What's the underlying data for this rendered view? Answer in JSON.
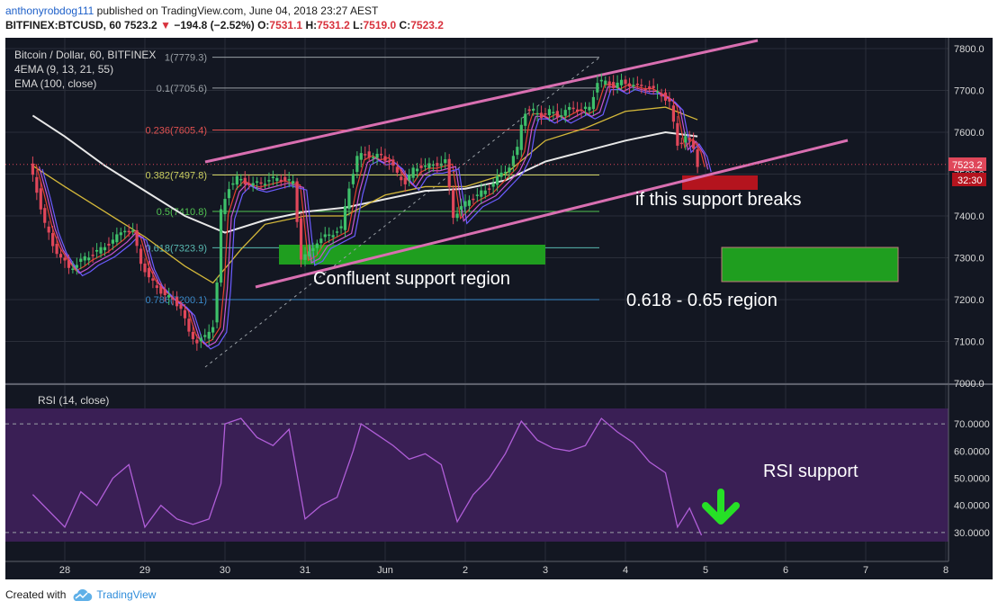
{
  "header": {
    "username": "anthonyrobdog111",
    "published_text": "published on TradingView.com, June 04, 2018 23:27 AEST",
    "symbol": "BITFINEX:BTCUSD, 60",
    "last": "7523.2",
    "change": "−194.8 (−2.52%)",
    "o_label": "O:",
    "o": "7531.1",
    "h_label": "H:",
    "h": "7531.2",
    "l_label": "L:",
    "l": "7519.0",
    "c_label": "C:",
    "c": "7523.2",
    "down_color": "#d8323d"
  },
  "legend": {
    "line1": "Bitcoin / Dollar, 60, BITFINEX",
    "line2": "4EMA (9, 13, 21, 55)",
    "line3": "EMA (100, close)"
  },
  "price_tag": {
    "value": "7523.2",
    "countdown": "32:30"
  },
  "rsi_legend": "RSI (14, close)",
  "annotations": {
    "confluent": "Confluent support region",
    "if_support": "if this support breaks",
    "golden": "0.618 - 0.65 region",
    "rsi_support": "RSI support"
  },
  "footer": {
    "created_with": "Created with",
    "brand": "TradingView"
  },
  "colors": {
    "background": "#131722",
    "pane": "#1e222d",
    "grid": "#2a2e39",
    "up": "#3ec06a",
    "down": "#e0475a",
    "channel": "#d96fb1",
    "ema100": "#e8e8e8",
    "rsi_fill": "#3a1f55",
    "rsi_line": "#b05ed8",
    "green_box": "#1f9e1f",
    "red_box": "#b4141e"
  },
  "chart_data": {
    "type": "candlestick",
    "title": "Bitcoin / Dollar, 60, BITFINEX",
    "x_ticks": [
      "28",
      "29",
      "30",
      "31",
      "Jun",
      "2",
      "3",
      "4",
      "5",
      "6",
      "7",
      "8"
    ],
    "price_axis": [
      "7800.0",
      "7700.0",
      "7600.0",
      "7500.0",
      "7400.0",
      "7300.0",
      "7200.0",
      "7100.0",
      "7000.0"
    ],
    "price_range": [
      7000,
      7800
    ],
    "rsi_axis": [
      "70.0000",
      "60.0000",
      "50.0000",
      "40.0000",
      "30.0000"
    ],
    "rsi_range": [
      26,
      75
    ],
    "fib_levels": [
      {
        "label": "1(7779.3)",
        "price": 7779.3,
        "color": "#9aa0a6"
      },
      {
        "label": "0.1(7705.6)",
        "price": 7705.6,
        "color": "#9aa0a6"
      },
      {
        "label": "0.236(7605.4)",
        "price": 7605.4,
        "color": "#e05050"
      },
      {
        "label": "0.382(7497.8)",
        "price": 7497.8,
        "color": "#cdd060"
      },
      {
        "label": "0.5(7410.8)",
        "price": 7410.8,
        "color": "#52c452"
      },
      {
        "label": "0.618(7323.9)",
        "price": 7323.9,
        "color": "#58b8b0"
      },
      {
        "label": "0.786(7200.1)",
        "price": 7200.1,
        "color": "#3a88c8"
      }
    ],
    "series": [
      {
        "name": "Bitcoin / Dollar",
        "kind": "ohlc",
        "color": "#3ec06a",
        "points": [
          [
            -0.4,
            7530
          ],
          [
            -0.3,
            7460
          ],
          [
            -0.2,
            7380
          ],
          [
            -0.1,
            7330
          ],
          [
            0.0,
            7300
          ],
          [
            0.1,
            7275
          ],
          [
            0.2,
            7285
          ],
          [
            0.3,
            7300
          ],
          [
            0.4,
            7310
          ],
          [
            0.5,
            7320
          ],
          [
            0.6,
            7335
          ],
          [
            0.7,
            7350
          ],
          [
            0.8,
            7370
          ],
          [
            0.9,
            7360
          ],
          [
            1.0,
            7290
          ],
          [
            1.1,
            7250
          ],
          [
            1.2,
            7230
          ],
          [
            1.3,
            7210
          ],
          [
            1.4,
            7200
          ],
          [
            1.5,
            7180
          ],
          [
            1.6,
            7120
          ],
          [
            1.7,
            7100
          ],
          [
            1.8,
            7110
          ],
          [
            1.9,
            7140
          ],
          [
            1.95,
            7240
          ],
          [
            2.0,
            7410
          ],
          [
            2.1,
            7470
          ],
          [
            2.2,
            7490
          ],
          [
            2.3,
            7480
          ],
          [
            2.4,
            7475
          ],
          [
            2.5,
            7480
          ],
          [
            2.6,
            7485
          ],
          [
            2.7,
            7490
          ],
          [
            2.8,
            7485
          ],
          [
            2.9,
            7480
          ],
          [
            3.0,
            7300
          ],
          [
            3.1,
            7310
          ],
          [
            3.2,
            7340
          ],
          [
            3.3,
            7350
          ],
          [
            3.4,
            7360
          ],
          [
            3.5,
            7370
          ],
          [
            3.6,
            7470
          ],
          [
            3.7,
            7540
          ],
          [
            3.8,
            7550
          ],
          [
            3.9,
            7540
          ],
          [
            4.0,
            7545
          ],
          [
            4.1,
            7530
          ],
          [
            4.2,
            7500
          ],
          [
            4.3,
            7480
          ],
          [
            4.4,
            7510
          ],
          [
            4.5,
            7520
          ],
          [
            4.6,
            7520
          ],
          [
            4.7,
            7525
          ],
          [
            4.8,
            7530
          ],
          [
            4.9,
            7400
          ],
          [
            5.0,
            7420
          ],
          [
            5.1,
            7440
          ],
          [
            5.2,
            7450
          ],
          [
            5.3,
            7460
          ],
          [
            5.4,
            7480
          ],
          [
            5.5,
            7500
          ],
          [
            5.6,
            7520
          ],
          [
            5.7,
            7560
          ],
          [
            5.75,
            7620
          ],
          [
            5.8,
            7650
          ],
          [
            5.9,
            7650
          ],
          [
            6.0,
            7640
          ],
          [
            6.1,
            7650
          ],
          [
            6.2,
            7640
          ],
          [
            6.3,
            7650
          ],
          [
            6.4,
            7660
          ],
          [
            6.5,
            7650
          ],
          [
            6.6,
            7660
          ],
          [
            6.7,
            7720
          ],
          [
            6.8,
            7720
          ],
          [
            6.9,
            7710
          ],
          [
            7.0,
            7720
          ],
          [
            7.1,
            7715
          ],
          [
            7.2,
            7710
          ],
          [
            7.3,
            7710
          ],
          [
            7.4,
            7700
          ],
          [
            7.5,
            7690
          ],
          [
            7.6,
            7670
          ],
          [
            7.7,
            7570
          ],
          [
            7.8,
            7590
          ],
          [
            7.9,
            7560
          ],
          [
            7.95,
            7523
          ]
        ]
      },
      {
        "name": "EMA (100, close)",
        "color": "#e8e8e8",
        "points": [
          [
            -0.4,
            7640
          ],
          [
            0.0,
            7590
          ],
          [
            0.5,
            7520
          ],
          [
            1.0,
            7460
          ],
          [
            1.5,
            7400
          ],
          [
            2.0,
            7360
          ],
          [
            2.5,
            7390
          ],
          [
            3.0,
            7410
          ],
          [
            3.5,
            7420
          ],
          [
            4.0,
            7440
          ],
          [
            4.5,
            7460
          ],
          [
            5.0,
            7465
          ],
          [
            5.5,
            7485
          ],
          [
            6.0,
            7530
          ],
          [
            6.5,
            7555
          ],
          [
            7.0,
            7580
          ],
          [
            7.5,
            7600
          ],
          [
            7.9,
            7590
          ]
        ]
      },
      {
        "name": "EMA 55",
        "color": "#d4b83a",
        "points": [
          [
            -0.4,
            7520
          ],
          [
            0.0,
            7470
          ],
          [
            0.5,
            7410
          ],
          [
            1.0,
            7350
          ],
          [
            1.5,
            7280
          ],
          [
            1.85,
            7240
          ],
          [
            2.2,
            7320
          ],
          [
            2.5,
            7380
          ],
          [
            3.0,
            7400
          ],
          [
            3.5,
            7400
          ],
          [
            4.0,
            7450
          ],
          [
            4.5,
            7470
          ],
          [
            5.0,
            7470
          ],
          [
            5.5,
            7500
          ],
          [
            6.0,
            7580
          ],
          [
            6.5,
            7610
          ],
          [
            7.0,
            7650
          ],
          [
            7.5,
            7660
          ],
          [
            7.9,
            7630
          ]
        ]
      }
    ],
    "rsi_series": {
      "name": "RSI (14, close)",
      "points": [
        [
          -0.4,
          44
        ],
        [
          0.0,
          32
        ],
        [
          0.2,
          45
        ],
        [
          0.4,
          40
        ],
        [
          0.6,
          50
        ],
        [
          0.8,
          55
        ],
        [
          1.0,
          32
        ],
        [
          1.2,
          40
        ],
        [
          1.4,
          35
        ],
        [
          1.6,
          33
        ],
        [
          1.8,
          35
        ],
        [
          1.95,
          48
        ],
        [
          2.0,
          70
        ],
        [
          2.2,
          72
        ],
        [
          2.4,
          65
        ],
        [
          2.6,
          62
        ],
        [
          2.8,
          68
        ],
        [
          3.0,
          35
        ],
        [
          3.2,
          40
        ],
        [
          3.4,
          43
        ],
        [
          3.6,
          60
        ],
        [
          3.7,
          70
        ],
        [
          3.9,
          66
        ],
        [
          4.1,
          62
        ],
        [
          4.3,
          57
        ],
        [
          4.5,
          59
        ],
        [
          4.7,
          55
        ],
        [
          4.9,
          34
        ],
        [
          5.1,
          44
        ],
        [
          5.3,
          50
        ],
        [
          5.5,
          59
        ],
        [
          5.7,
          71
        ],
        [
          5.9,
          64
        ],
        [
          6.1,
          61
        ],
        [
          6.3,
          60
        ],
        [
          6.5,
          62
        ],
        [
          6.7,
          72
        ],
        [
          6.9,
          67
        ],
        [
          7.1,
          63
        ],
        [
          7.3,
          56
        ],
        [
          7.5,
          52
        ],
        [
          7.65,
          32
        ],
        [
          7.8,
          39
        ],
        [
          7.95,
          29
        ]
      ]
    }
  }
}
